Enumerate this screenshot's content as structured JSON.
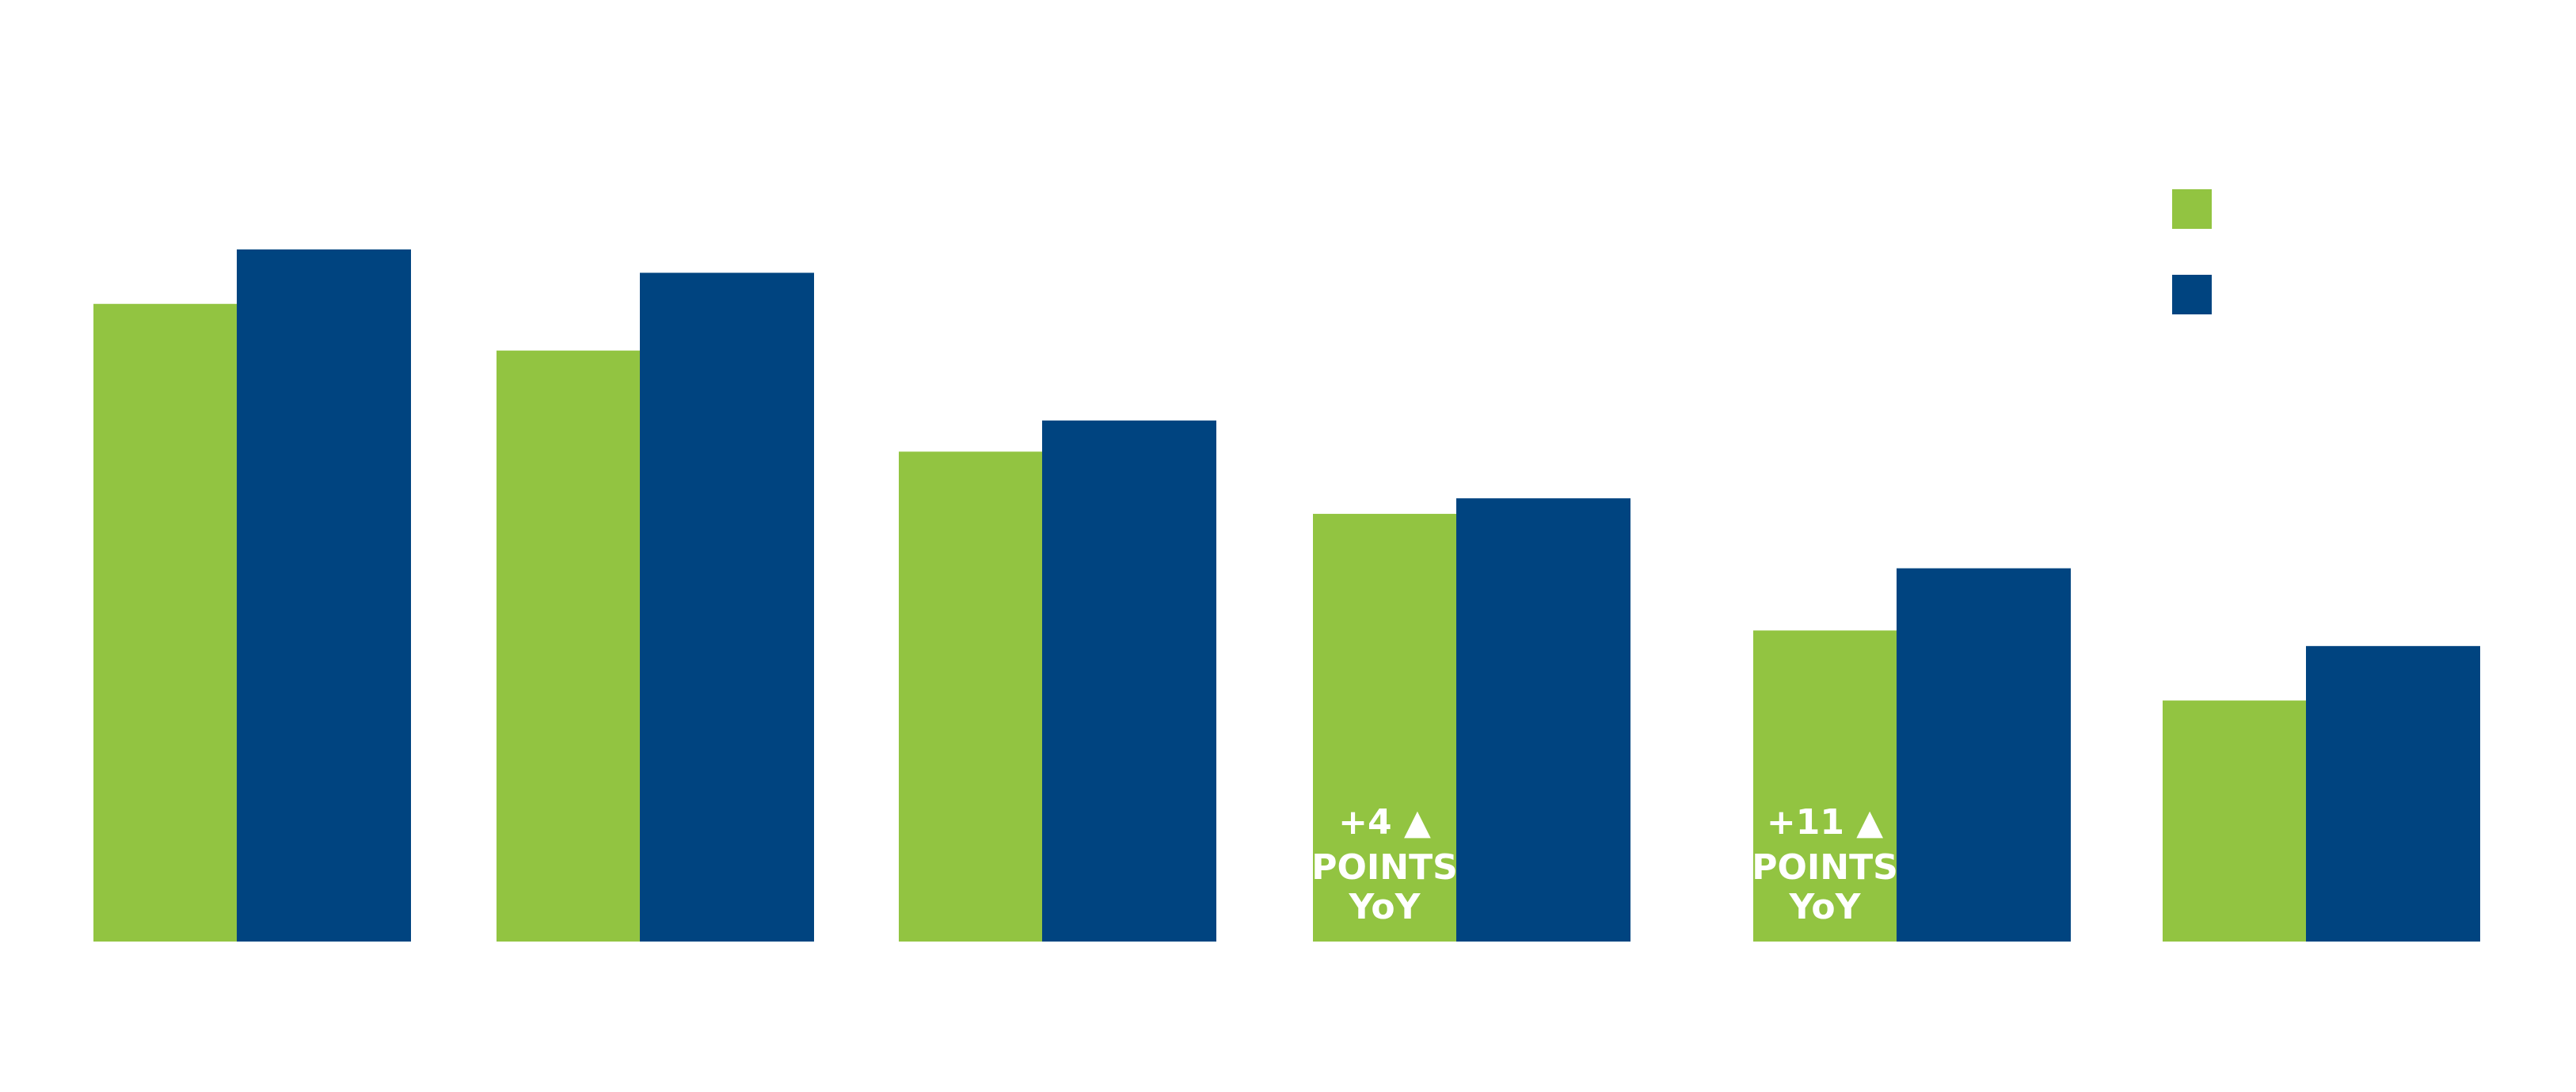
{
  "chart_data": {
    "type": "bar",
    "categories": [
      null,
      null,
      null,
      null,
      null,
      null
    ],
    "series": [
      {
        "color": "#92c441",
        "values": [
          82,
          76,
          63,
          55,
          40,
          31
        ]
      },
      {
        "color": "#004480",
        "values": [
          89,
          86,
          67,
          57,
          48,
          38
        ]
      }
    ],
    "ylim": [
      0,
      100
    ],
    "annotations": [
      [
        "+4 ▲",
        "POINTS",
        "YoY"
      ],
      [
        "+11 ▲",
        "POINTS",
        "YoY"
      ]
    ]
  }
}
